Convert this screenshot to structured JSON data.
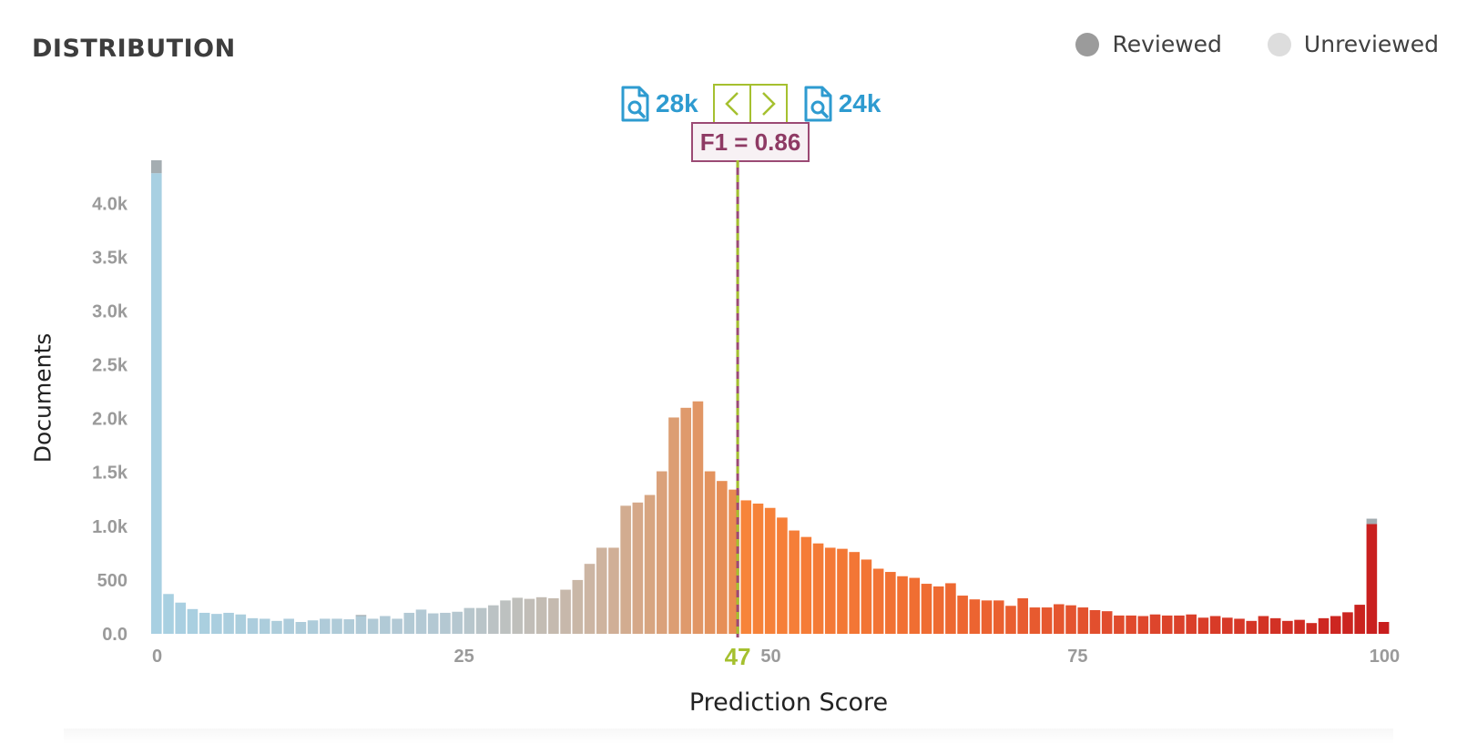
{
  "title": "DISTRIBUTION",
  "legend": [
    {
      "label": "Reviewed",
      "color": "#9b9b9b"
    },
    {
      "label": "Unreviewed",
      "color": "#dddddd"
    }
  ],
  "controls": {
    "left_count": "28k",
    "right_count": "24k",
    "prev_icon": "chevron-left-icon",
    "next_icon": "chevron-right-icon",
    "doc_icon": "document-search-icon",
    "f1_label": "F1 = 0.86",
    "accent_color": "#a5c02f",
    "count_color": "#2e9bd0",
    "f1_color": "#9b4a74"
  },
  "chart_data": {
    "type": "bar",
    "xlabel": "Prediction Score",
    "ylabel": "Documents",
    "xlim": [
      0,
      100
    ],
    "ylim": [
      0,
      4400
    ],
    "x_ticks": [
      "0",
      "25",
      "50",
      "75",
      "100"
    ],
    "y_ticks": [
      "0.0",
      "500",
      "1.0k",
      "1.5k",
      "2.0k",
      "2.5k",
      "3.0k",
      "3.5k",
      "4.0k"
    ],
    "threshold": {
      "value": 47,
      "label": "47"
    },
    "reviewed_color": "#9aa4a8",
    "series": [
      {
        "name": "Unreviewed",
        "values": [
          4280,
          370,
          290,
          230,
          195,
          185,
          195,
          180,
          145,
          140,
          120,
          140,
          110,
          125,
          140,
          140,
          135,
          165,
          140,
          165,
          140,
          195,
          225,
          190,
          195,
          205,
          240,
          240,
          265,
          310,
          335,
          325,
          340,
          330,
          410,
          500,
          650,
          800,
          800,
          1190,
          1220,
          1290,
          1510,
          2010,
          2100,
          2160,
          1510,
          1420,
          1340,
          1240,
          1210,
          1170,
          1080,
          960,
          900,
          840,
          800,
          790,
          760,
          690,
          605,
          575,
          535,
          520,
          465,
          440,
          470,
          355,
          320,
          310,
          310,
          260,
          330,
          245,
          245,
          275,
          265,
          245,
          220,
          210,
          170,
          170,
          165,
          180,
          170,
          170,
          180,
          150,
          165,
          150,
          140,
          120,
          165,
          145,
          120,
          130,
          100,
          145,
          165,
          200,
          270,
          1020,
          110
        ],
        "reviewed": [
          120,
          0,
          0,
          0,
          0,
          0,
          0,
          0,
          0,
          0,
          0,
          0,
          0,
          0,
          0,
          0,
          0,
          10,
          0,
          0,
          0,
          0,
          0,
          0,
          0,
          0,
          0,
          0,
          0,
          0,
          0,
          0,
          0,
          0,
          0,
          0,
          0,
          0,
          0,
          0,
          0,
          0,
          0,
          0,
          0,
          0,
          0,
          0,
          0,
          0,
          0,
          0,
          0,
          0,
          0,
          0,
          0,
          0,
          0,
          0,
          0,
          0,
          0,
          0,
          0,
          0,
          0,
          0,
          0,
          0,
          0,
          0,
          0,
          0,
          0,
          0,
          0,
          0,
          0,
          0,
          0,
          0,
          0,
          0,
          0,
          0,
          0,
          0,
          0,
          0,
          0,
          0,
          0,
          0,
          0,
          0,
          0,
          0,
          0,
          0,
          0,
          50,
          0
        ]
      }
    ]
  }
}
